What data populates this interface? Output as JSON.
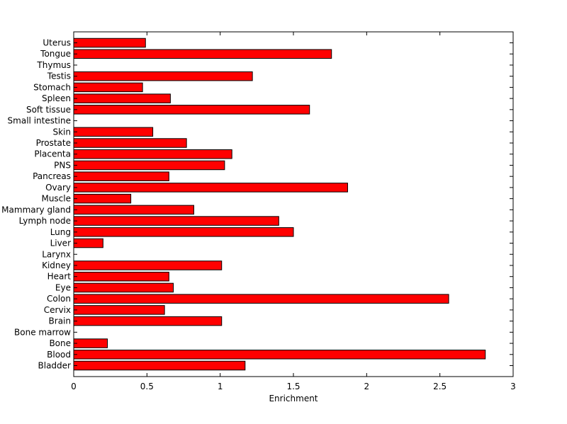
{
  "chart_data": {
    "type": "bar",
    "orientation": "horizontal",
    "title": "",
    "xlabel": "Enrichment",
    "ylabel": "",
    "xlim": [
      0,
      3
    ],
    "xticks": [
      0,
      0.5,
      1,
      1.5,
      2,
      2.5,
      3
    ],
    "xtick_labels": [
      "0",
      "0.5",
      "1",
      "1.5",
      "2",
      "2.5",
      "3"
    ],
    "grid": false,
    "legend": "none",
    "bar_color": "#ff0000",
    "categories": [
      "Bladder",
      "Blood",
      "Bone",
      "Bone marrow",
      "Brain",
      "Cervix",
      "Colon",
      "Eye",
      "Heart",
      "Kidney",
      "Larynx",
      "Liver",
      "Lung",
      "Lymph node",
      "Mammary gland",
      "Muscle",
      "Ovary",
      "Pancreas",
      "PNS",
      "Placenta",
      "Prostate",
      "Skin",
      "Small intestine",
      "Soft tissue",
      "Spleen",
      "Stomach",
      "Testis",
      "Thymus",
      "Tongue",
      "Uterus"
    ],
    "values": [
      1.17,
      2.81,
      0.23,
      0,
      1.01,
      0.62,
      2.56,
      0.68,
      0.65,
      1.01,
      0,
      0.2,
      1.5,
      1.4,
      0.82,
      0.39,
      1.87,
      0.65,
      1.03,
      1.08,
      0.77,
      0.54,
      0,
      1.61,
      0.66,
      0.47,
      1.22,
      0,
      1.76,
      0.49
    ]
  }
}
